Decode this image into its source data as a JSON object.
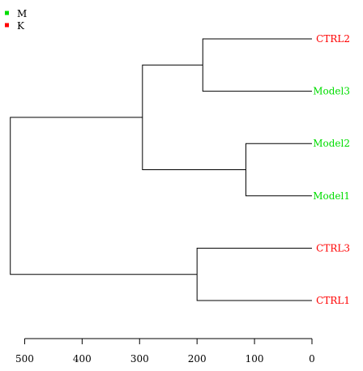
{
  "chart_data": {
    "type": "dendrogram",
    "title": "",
    "xlabel": "",
    "ylabel": "",
    "x_axis": {
      "orientation": "reversed",
      "range": [
        525,
        0
      ],
      "ticks": [
        500,
        400,
        300,
        200,
        100,
        0
      ]
    },
    "legend": {
      "placement": "top-left",
      "entries": [
        {
          "name": "M",
          "color": "#00dd00"
        },
        {
          "name": "K",
          "color": "#ff0000"
        }
      ]
    },
    "leaves": [
      {
        "label": "CTRL2",
        "group": "K",
        "color": "#ff0000"
      },
      {
        "label": "Model3",
        "group": "M",
        "color": "#00dd00"
      },
      {
        "label": "Model2",
        "group": "M",
        "color": "#00dd00"
      },
      {
        "label": "Model1",
        "group": "M",
        "color": "#00dd00"
      },
      {
        "label": "CTRL3",
        "group": "K",
        "color": "#ff0000"
      },
      {
        "label": "CTRL1",
        "group": "K",
        "color": "#ff0000"
      }
    ],
    "merges": [
      {
        "left": "CTRL2",
        "right": "Model3",
        "height": 190
      },
      {
        "left": "Model2",
        "right": "Model1",
        "height": 115
      },
      {
        "left": "CTRL3",
        "right": "CTRL1",
        "height": 200
      },
      {
        "left": 0,
        "right": 1,
        "height": 295
      },
      {
        "left": 3,
        "right": 2,
        "height": 525
      }
    ]
  }
}
